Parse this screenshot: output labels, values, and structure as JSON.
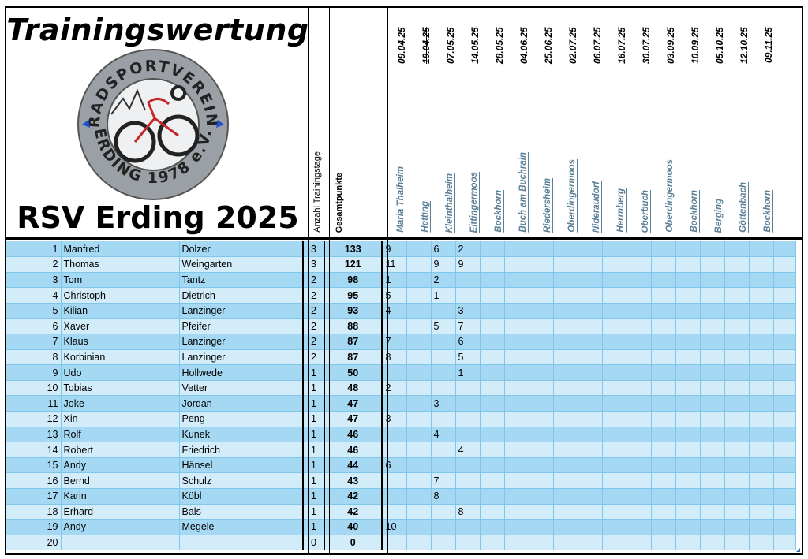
{
  "header": {
    "title": "Trainingswertung",
    "club": "RSV Erding 2025",
    "count_label": "Anzahl Trainingstage",
    "total_label": "Gesamtpunkte",
    "logo": {
      "top_text": "RADSPORTVEREIN",
      "bottom_text": "ERDING 1978 e.V."
    }
  },
  "events": [
    {
      "date": "09.04.25",
      "location": "Maria Thalheim",
      "cancelled": false
    },
    {
      "date": "19.04.25",
      "location": "Hetting",
      "cancelled": true
    },
    {
      "date": "07.05.25",
      "location": "Kleinthalheim",
      "cancelled": false
    },
    {
      "date": "14.05.25",
      "location": "Eittingermoos",
      "cancelled": false
    },
    {
      "date": "28.05.25",
      "location": "Bockhorn",
      "cancelled": false
    },
    {
      "date": "04.06.25",
      "location": "Buch am Buchrain",
      "cancelled": false
    },
    {
      "date": "25.06.25",
      "location": "Riedersheim",
      "cancelled": false
    },
    {
      "date": "02.07.25",
      "location": "Oberdingermoos",
      "cancelled": false
    },
    {
      "date": "06.07.25",
      "location": "Nideraudorf",
      "cancelled": false
    },
    {
      "date": "16.07.25",
      "location": "Herrnberg",
      "cancelled": false
    },
    {
      "date": "30.07.25",
      "location": "Oberbuch",
      "cancelled": false
    },
    {
      "date": "03.09.25",
      "location": "Oberdingermoos",
      "cancelled": false
    },
    {
      "date": "10.09.25",
      "location": "Bockhorn",
      "cancelled": false
    },
    {
      "date": "05.10.25",
      "location": "Berging",
      "cancelled": false
    },
    {
      "date": "12.10.25",
      "location": "Göttenbach",
      "cancelled": false
    },
    {
      "date": "09.11.25",
      "location": "Bockhorn",
      "cancelled": false
    }
  ],
  "rows": [
    {
      "rank": "1",
      "first": "Manfred",
      "last": "Dolzer",
      "count": "3",
      "total": "133",
      "scores": [
        "9",
        "",
        "6",
        "2"
      ]
    },
    {
      "rank": "2",
      "first": "Thomas",
      "last": "Weingarten",
      "count": "3",
      "total": "121",
      "scores": [
        "11",
        "",
        "9",
        "9"
      ]
    },
    {
      "rank": "3",
      "first": "Tom",
      "last": "Tantz",
      "count": "2",
      "total": "98",
      "scores": [
        "1",
        "",
        "2",
        ""
      ]
    },
    {
      "rank": "4",
      "first": "Christoph",
      "last": "Dietrich",
      "count": "2",
      "total": "95",
      "scores": [
        "5",
        "",
        "1",
        ""
      ]
    },
    {
      "rank": "5",
      "first": "Kilian",
      "last": "Lanzinger",
      "count": "2",
      "total": "93",
      "scores": [
        "4",
        "",
        "",
        "3"
      ]
    },
    {
      "rank": "6",
      "first": "Xaver",
      "last": "Pfeifer",
      "count": "2",
      "total": "88",
      "scores": [
        "",
        "",
        "5",
        "7"
      ]
    },
    {
      "rank": "7",
      "first": "Klaus",
      "last": "Lanzinger",
      "count": "2",
      "total": "87",
      "scores": [
        "7",
        "",
        "",
        "6"
      ]
    },
    {
      "rank": "8",
      "first": "Korbinian",
      "last": "Lanzinger",
      "count": "2",
      "total": "87",
      "scores": [
        "8",
        "",
        "",
        "5"
      ]
    },
    {
      "rank": "9",
      "first": "Udo",
      "last": "Hollwede",
      "count": "1",
      "total": "50",
      "scores": [
        "",
        "",
        "",
        "1"
      ]
    },
    {
      "rank": "10",
      "first": "Tobias",
      "last": "Vetter",
      "count": "1",
      "total": "48",
      "scores": [
        "2",
        "",
        "",
        ""
      ]
    },
    {
      "rank": "11",
      "first": "Joke",
      "last": "Jordan",
      "count": "1",
      "total": "47",
      "scores": [
        "",
        "",
        "3",
        ""
      ]
    },
    {
      "rank": "12",
      "first": "Xin",
      "last": "Peng",
      "count": "1",
      "total": "47",
      "scores": [
        "3",
        "",
        "",
        ""
      ]
    },
    {
      "rank": "13",
      "first": "Rolf",
      "last": "Kunek",
      "count": "1",
      "total": "46",
      "scores": [
        "",
        "",
        "4",
        ""
      ]
    },
    {
      "rank": "14",
      "first": "Robert",
      "last": "Friedrich",
      "count": "1",
      "total": "46",
      "scores": [
        "",
        "",
        "",
        "4"
      ]
    },
    {
      "rank": "15",
      "first": "Andy",
      "last": "Hänsel",
      "count": "1",
      "total": "44",
      "scores": [
        "6",
        "",
        "",
        ""
      ]
    },
    {
      "rank": "16",
      "first": "Bernd",
      "last": "Schulz",
      "count": "1",
      "total": "43",
      "scores": [
        "",
        "",
        "7",
        ""
      ]
    },
    {
      "rank": "17",
      "first": "Karin",
      "last": "Köbl",
      "count": "1",
      "total": "42",
      "scores": [
        "",
        "",
        "8",
        ""
      ]
    },
    {
      "rank": "18",
      "first": "Erhard",
      "last": "Bals",
      "count": "1",
      "total": "42",
      "scores": [
        "",
        "",
        "",
        "8"
      ]
    },
    {
      "rank": "19",
      "first": "Andy",
      "last": "Megele",
      "count": "1",
      "total": "40",
      "scores": [
        "10",
        "",
        "",
        ""
      ]
    },
    {
      "rank": "20",
      "first": "",
      "last": "",
      "count": "0",
      "total": "0",
      "scores": []
    }
  ]
}
